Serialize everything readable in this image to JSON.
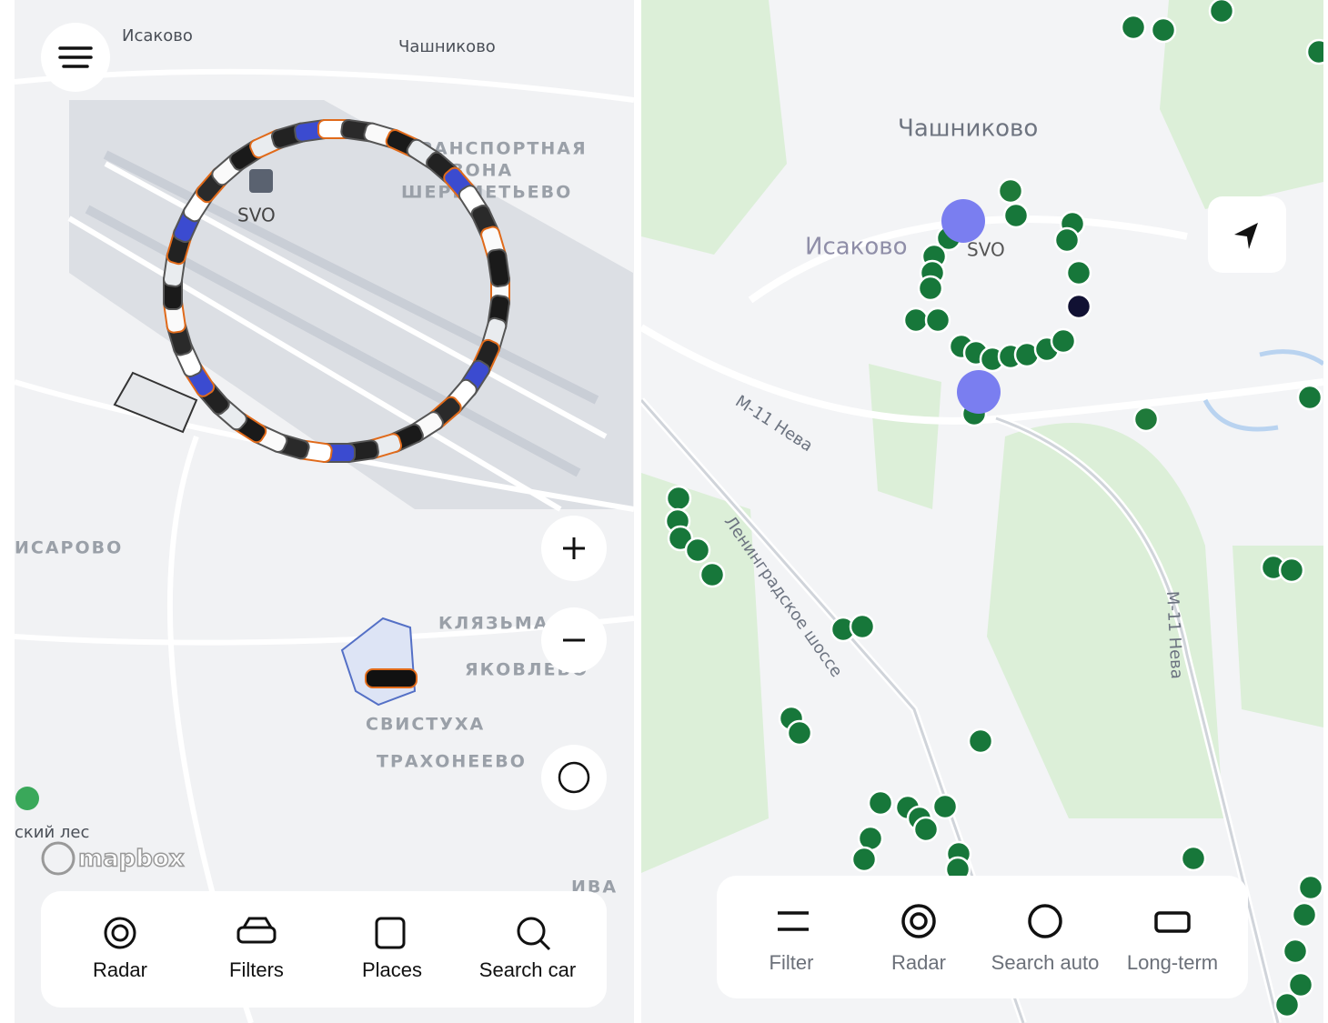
{
  "left_map": {
    "place_labels": [
      "Исаково",
      "Чашниково",
      "ТРАНСПОРТНАЯ",
      "ЗОНА",
      "ШЕРЕМЕТЬЕВО",
      "ИСАРОВО",
      "КЛЯЗЬМА",
      "ЯКОВЛЕВО",
      "СВИСТУХА",
      "ТРАХОНЕЕВО",
      "ский лес",
      "ИВА"
    ],
    "airport_code": "SVO",
    "attribution": "mapbox",
    "nav": [
      "Radar",
      "Filters",
      "Places",
      "Search car"
    ]
  },
  "right_map": {
    "place_labels": [
      "Чашниково",
      "Исаково"
    ],
    "airport_code": "SVO",
    "road_labels": [
      "М-11 Нева",
      "Ленинградское шоссе",
      "М-11 Нева"
    ],
    "nav": [
      "Filter",
      "Radar",
      "Search auto",
      "Long-term"
    ]
  }
}
